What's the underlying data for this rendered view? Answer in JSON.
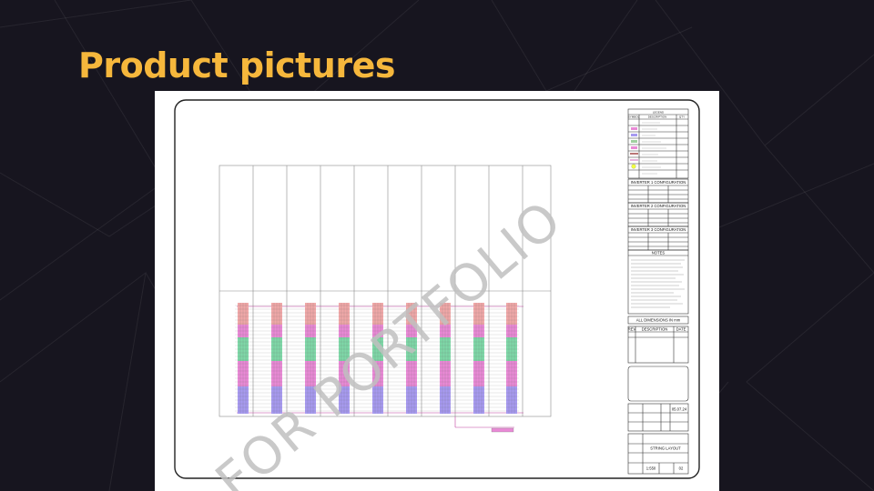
{
  "slide": {
    "title": "Product pictures"
  },
  "drawing": {
    "watermark": "FOR PORTFOLIO",
    "legend": {
      "title": "LEGEND",
      "columns": [
        "SYMBOL",
        "DESCRIPTION",
        "QTY"
      ]
    },
    "inverter_config_1": {
      "title": "INVERTER 1 CONFIGURATION"
    },
    "inverter_config_2": {
      "title": "INVERTER 2 CONFIGURATION"
    },
    "inverter_config_3": {
      "title": "INVERTER 3 CONFIGURATION"
    },
    "notes": {
      "title": "NOTES"
    },
    "dimensions_note": "ALL DIMENSIONS IN mm",
    "revision_table": {
      "columns": [
        "REV",
        "DESCRIPTION",
        "DATE"
      ]
    },
    "title_block": {
      "date": "05.07.24",
      "sheet_title": "STRING LAYOUT",
      "scale": "1:550",
      "sheet_number": "02"
    }
  },
  "colors": {
    "title": "#f6b73c",
    "background": "#17151f",
    "panel_pink": "#e98ad6",
    "panel_blue": "#a79af0",
    "panel_green": "#7fd8a8",
    "panel_salmon": "#f0a8a8"
  }
}
